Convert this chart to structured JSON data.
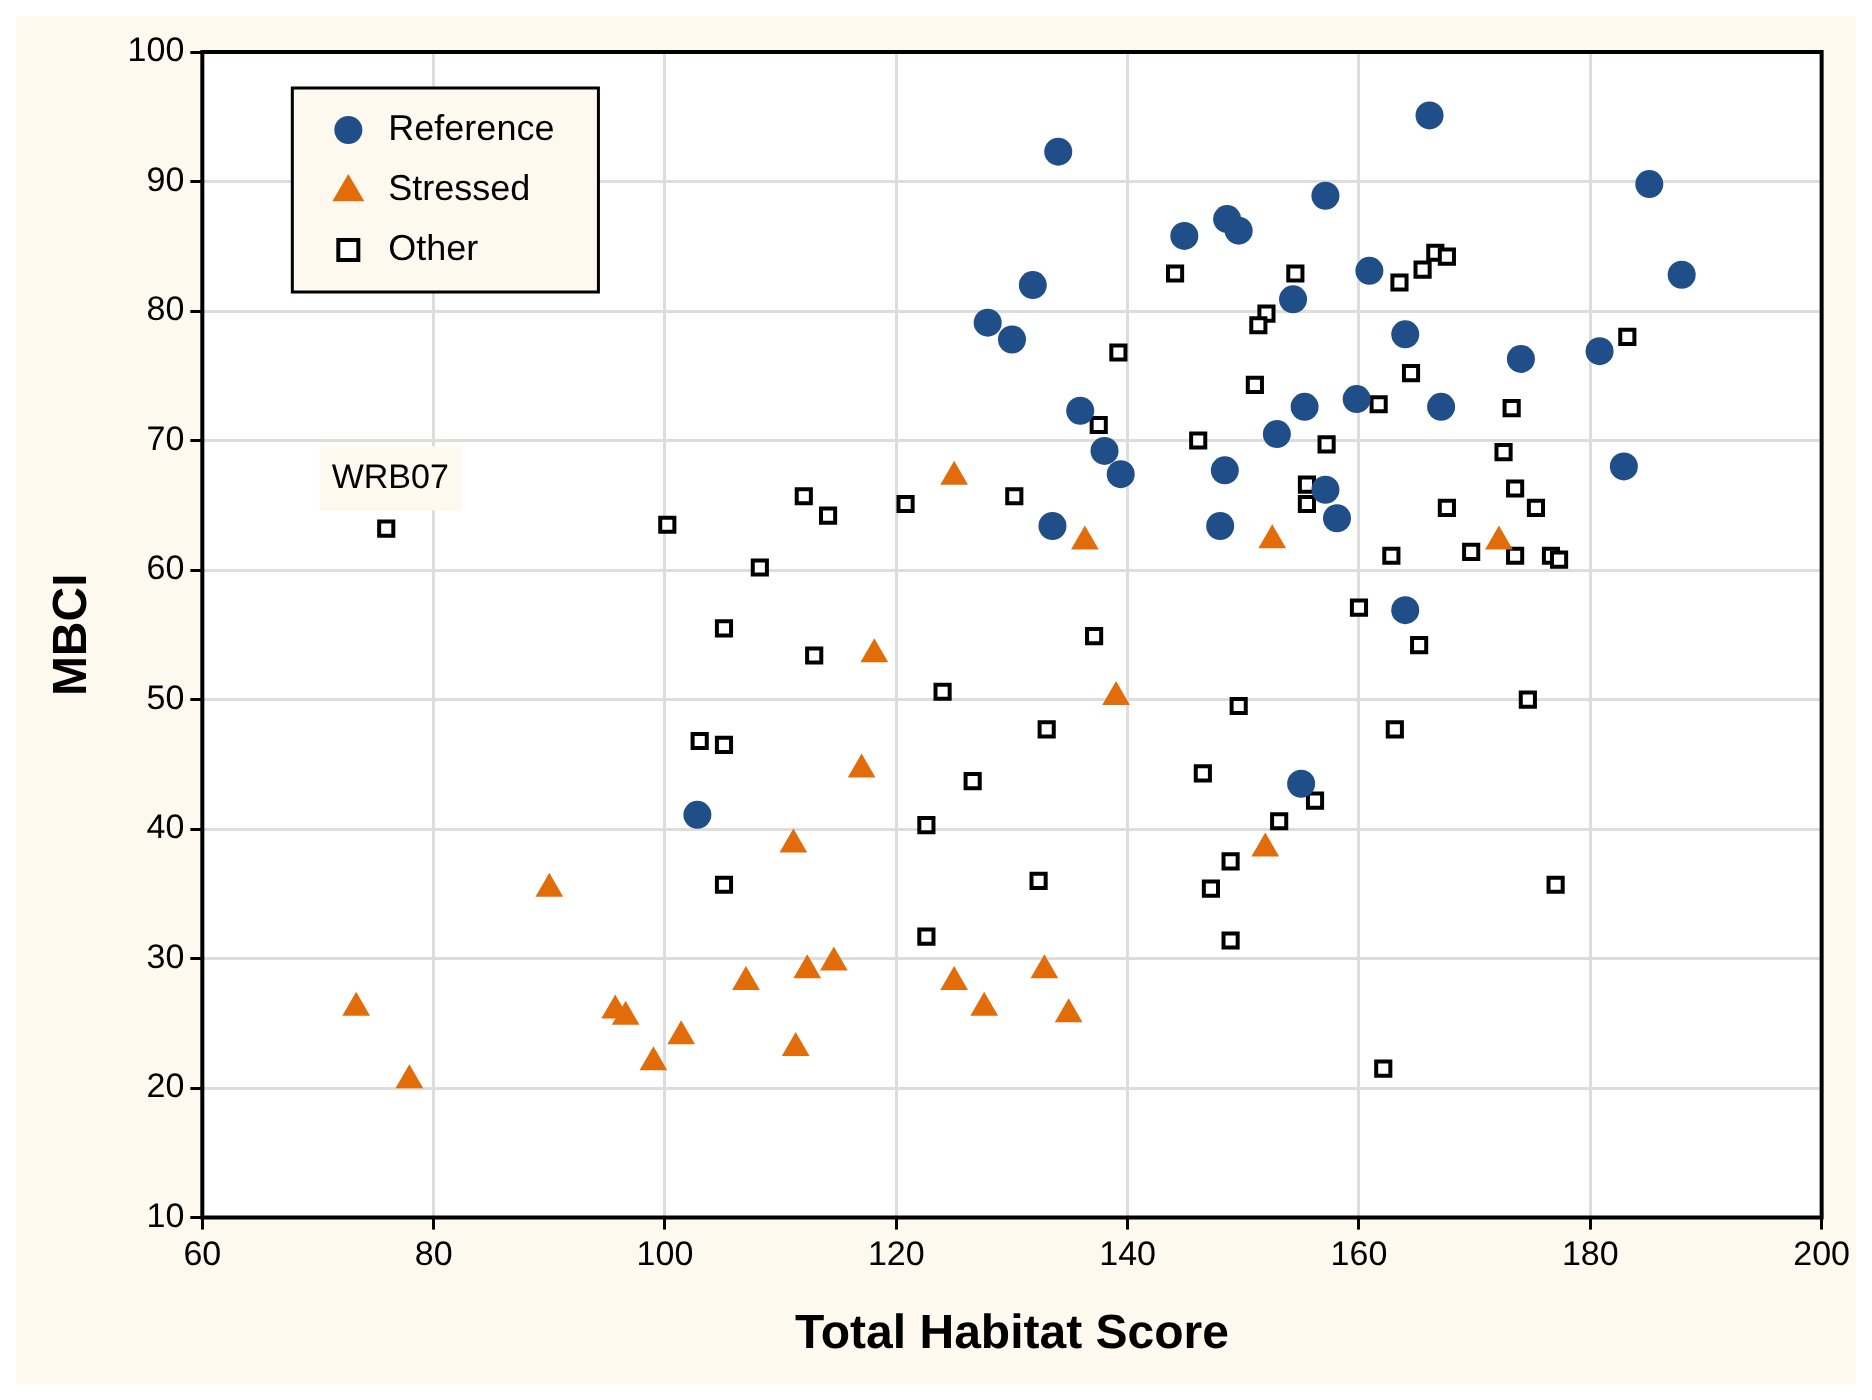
{
  "chart_data": {
    "type": "scatter",
    "xlabel": "Total Habitat Score",
    "ylabel": "MBCI",
    "xlim": [
      60,
      200
    ],
    "xticks": [
      60,
      80,
      100,
      120,
      140,
      160,
      180,
      200
    ],
    "ylim": [
      10,
      100
    ],
    "yticks": [
      10,
      20,
      30,
      40,
      50,
      60,
      70,
      80,
      90,
      100
    ],
    "grid": true,
    "legend": "top left",
    "annotations": [
      {
        "text": "WRB07",
        "x": 75.9,
        "y": 63.2
      }
    ],
    "series": [
      {
        "name": "Reference",
        "color": "#1f4e88",
        "marker": "circle",
        "x": [
          134.0,
          166.1,
          185.1,
          187.9,
          157.1,
          144.9,
          148.6,
          149.6,
          131.8,
          127.9,
          130.0,
          160.9,
          154.3,
          164.0,
          174.0,
          180.8,
          182.9,
          135.9,
          138.0,
          139.4,
          133.5,
          148.0,
          148.4,
          152.9,
          155.3,
          159.8,
          167.1,
          157.1,
          158.1,
          164.0,
          102.8,
          155.0
        ],
        "values": [
          92.3,
          95.1,
          89.8,
          82.8,
          88.9,
          85.8,
          87.1,
          86.2,
          82.0,
          79.1,
          77.8,
          83.1,
          80.9,
          78.2,
          76.3,
          76.9,
          68.0,
          72.3,
          69.2,
          67.4,
          63.4,
          63.4,
          67.7,
          70.5,
          72.6,
          73.2,
          72.6,
          66.2,
          64.0,
          56.9,
          41.1,
          43.5
        ]
      },
      {
        "name": "Stressed",
        "color": "#e36c0a",
        "marker": "triangle",
        "x": [
          125.0,
          118.1,
          136.3,
          152.5,
          172.1,
          117.0,
          111.1,
          90.0,
          73.3,
          77.9,
          95.7,
          96.6,
          99.0,
          101.4,
          107.0,
          112.3,
          114.6,
          111.3,
          125.0,
          127.6,
          139.0,
          132.8,
          134.9,
          151.9
        ],
        "values": [
          67.2,
          53.5,
          62.2,
          62.3,
          62.2,
          44.6,
          38.8,
          35.4,
          26.2,
          20.6,
          26.0,
          25.5,
          22.0,
          24.0,
          28.2,
          29.1,
          29.7,
          23.1,
          28.2,
          26.2,
          50.2,
          29.1,
          25.7,
          38.5
        ]
      },
      {
        "name": "Other",
        "color": "#000000",
        "marker": "square",
        "x": [
          75.9,
          100.2,
          112.0,
          114.1,
          120.8,
          130.2,
          108.2,
          105.1,
          112.9,
          144.1,
          154.5,
          163.5,
          165.5,
          166.6,
          167.6,
          152.0,
          151.3,
          139.2,
          151.0,
          164.5,
          183.2,
          173.2,
          161.7,
          137.5,
          146.1,
          157.2,
          172.5,
          155.5,
          155.5,
          173.5,
          167.6,
          175.3,
          162.8,
          169.7,
          173.5,
          176.6,
          177.3,
          160.0,
          137.1,
          165.2,
          124.0,
          103.0,
          105.1,
          126.6,
          122.6,
          105.1,
          122.6,
          133.0,
          149.6,
          163.1,
          174.6,
          146.5,
          156.2,
          153.1,
          148.9,
          147.2,
          132.3,
          177.0,
          148.9,
          162.1
        ],
        "values": [
          63.2,
          63.5,
          65.7,
          64.2,
          65.1,
          65.7,
          60.2,
          55.5,
          53.4,
          82.9,
          82.9,
          82.2,
          83.2,
          84.5,
          84.2,
          79.8,
          78.9,
          76.8,
          74.3,
          75.2,
          78.0,
          72.5,
          72.8,
          71.2,
          70.0,
          69.7,
          69.1,
          66.6,
          65.1,
          66.3,
          64.8,
          64.8,
          61.1,
          61.4,
          61.1,
          61.1,
          60.8,
          57.1,
          54.9,
          54.2,
          50.6,
          46.8,
          46.5,
          43.7,
          40.3,
          35.7,
          31.7,
          47.7,
          49.5,
          47.7,
          50.0,
          44.3,
          42.2,
          40.6,
          37.5,
          35.4,
          36.0,
          35.7,
          31.4,
          21.5
        ]
      }
    ]
  }
}
